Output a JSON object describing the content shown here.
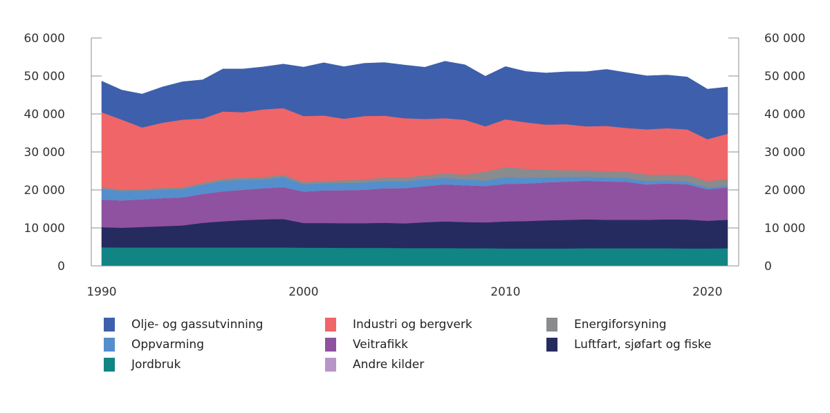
{
  "chart_data": {
    "type": "area",
    "stacked": true,
    "title": "",
    "xlabel": "",
    "ylabel": "",
    "ylim": [
      0,
      60000
    ],
    "xlim": [
      1990,
      2021
    ],
    "y_ticks": [
      0,
      10000,
      20000,
      30000,
      40000,
      50000,
      60000
    ],
    "y_tick_labels": [
      "0",
      "10 000",
      "20 000",
      "30 000",
      "40 000",
      "50 000",
      "60 000"
    ],
    "x_ticks": [
      1990,
      2000,
      2010,
      2020
    ],
    "x_tick_labels": [
      "1990",
      "2000",
      "2010",
      "2020"
    ],
    "grid": false,
    "legend_position": "bottom",
    "x": [
      1990,
      1991,
      1992,
      1993,
      1994,
      1995,
      1996,
      1997,
      1998,
      1999,
      2000,
      2001,
      2002,
      2003,
      2004,
      2005,
      2006,
      2007,
      2008,
      2009,
      2010,
      2011,
      2012,
      2013,
      2014,
      2015,
      2016,
      2017,
      2018,
      2019,
      2020,
      2021
    ],
    "series": [
      {
        "name": "Jordbruk",
        "color": "#108583",
        "values": [
          4900,
          4850,
          4850,
          4850,
          4850,
          4850,
          4850,
          4850,
          4850,
          4850,
          4800,
          4800,
          4750,
          4750,
          4750,
          4700,
          4700,
          4700,
          4650,
          4650,
          4600,
          4600,
          4600,
          4600,
          4650,
          4650,
          4650,
          4650,
          4650,
          4600,
          4600,
          4650
        ]
      },
      {
        "name": "Luftfart, sjøfart og fiske",
        "color": "#252b5e",
        "values": [
          5300,
          5200,
          5400,
          5600,
          5800,
          6500,
          6900,
          7200,
          7400,
          7500,
          6500,
          6500,
          6500,
          6500,
          6600,
          6500,
          6800,
          7000,
          6900,
          6800,
          7100,
          7200,
          7400,
          7500,
          7600,
          7500,
          7500,
          7500,
          7600,
          7600,
          7300,
          7500
        ]
      },
      {
        "name": "Veitrafikk",
        "color": "#8f52a0",
        "values": [
          7300,
          7200,
          7300,
          7400,
          7400,
          7600,
          7900,
          8000,
          8200,
          8400,
          8300,
          8600,
          8700,
          8800,
          9100,
          9300,
          9500,
          9800,
          9700,
          9600,
          9900,
          9900,
          10000,
          10100,
          10200,
          10100,
          10000,
          9300,
          9500,
          9300,
          8300,
          8500
        ]
      },
      {
        "name": "Andre kilder",
        "color": "#b795c8",
        "values": [
          0,
          0,
          0,
          0,
          0,
          0,
          0,
          0,
          0,
          0,
          0,
          0,
          0,
          0,
          0,
          0,
          0,
          0,
          0,
          0,
          0,
          0,
          0,
          0,
          0,
          0,
          0,
          0,
          0,
          0,
          0,
          0
        ]
      },
      {
        "name": "Oppvarming",
        "color": "#548ecc",
        "values": [
          2800,
          2500,
          2300,
          2200,
          2200,
          2400,
          2700,
          2600,
          2300,
          2600,
          1900,
          1900,
          1900,
          1900,
          1900,
          1800,
          1800,
          1700,
          1500,
          1400,
          1800,
          1500,
          1300,
          1200,
          1000,
          1000,
          950,
          900,
          800,
          650,
          450,
          450
        ]
      },
      {
        "name": "Energiforsyning",
        "color": "#8a8b8d",
        "values": [
          350,
          350,
          400,
          450,
          450,
          550,
          600,
          600,
          650,
          700,
          550,
          600,
          700,
          800,
          900,
          1000,
          1100,
          1100,
          1300,
          2400,
          2600,
          2400,
          2000,
          1800,
          1700,
          1700,
          1700,
          1700,
          1500,
          1800,
          1700,
          1800
        ]
      },
      {
        "name": "Industri og bergverk",
        "color": "#f06567",
        "values": [
          19800,
          18400,
          16200,
          17200,
          17800,
          16900,
          17700,
          17200,
          17800,
          17500,
          17400,
          17200,
          16200,
          16700,
          16300,
          15600,
          14800,
          14600,
          14400,
          11900,
          12600,
          12200,
          11900,
          12100,
          11600,
          11900,
          11500,
          11900,
          12200,
          12000,
          11000,
          11900
        ]
      },
      {
        "name": "Olje- og gassutvinning",
        "color": "#3e5fac",
        "values": [
          8200,
          7800,
          8800,
          9400,
          10000,
          10200,
          11200,
          11400,
          11200,
          11600,
          12900,
          13900,
          13700,
          13900,
          14000,
          14000,
          13600,
          15000,
          14500,
          13200,
          13900,
          13400,
          13600,
          13800,
          14400,
          14900,
          14600,
          14100,
          14000,
          13800,
          13200,
          12300
        ]
      }
    ],
    "legend": [
      {
        "label": "Olje- og gassutvinning",
        "color": "#3e5fac"
      },
      {
        "label": "Industri og bergverk",
        "color": "#f06567"
      },
      {
        "label": "Energiforsyning",
        "color": "#8a8b8d"
      },
      {
        "label": "Oppvarming",
        "color": "#548ecc"
      },
      {
        "label": "Veitrafikk",
        "color": "#8f52a0"
      },
      {
        "label": "Luftfart, sjøfart og fiske",
        "color": "#252b5e"
      },
      {
        "label": "Jordbruk",
        "color": "#108583"
      },
      {
        "label": "Andre kilder",
        "color": "#b795c8"
      }
    ]
  }
}
